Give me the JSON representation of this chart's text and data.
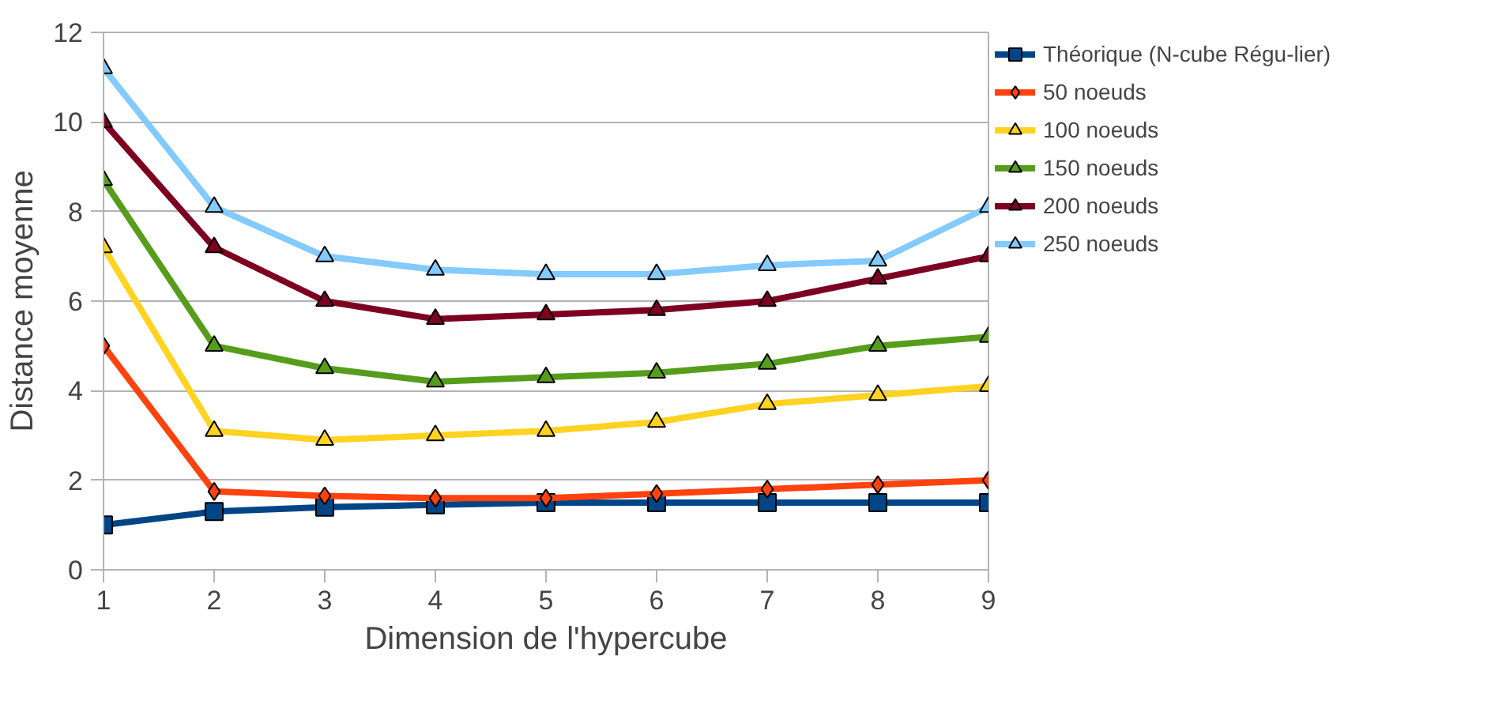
{
  "chart_data": {
    "type": "line",
    "xlabel": "Dimension de l'hypercube",
    "ylabel": "Distance moyenne",
    "x": [
      1,
      2,
      3,
      4,
      5,
      6,
      7,
      8,
      9
    ],
    "series": [
      {
        "name": "Théorique (N-cube Régu-lier)",
        "color": "#004586",
        "marker": "square",
        "values": [
          1.0,
          1.3,
          1.4,
          1.45,
          1.5,
          1.5,
          1.5,
          1.5,
          1.5
        ]
      },
      {
        "name": "50 noeuds",
        "color": "#ff420e",
        "marker": "diamond",
        "values": [
          5.0,
          1.75,
          1.65,
          1.6,
          1.6,
          1.7,
          1.8,
          1.9,
          2.0
        ]
      },
      {
        "name": "100 noeuds",
        "color": "#ffd320",
        "marker": "triangle",
        "values": [
          7.2,
          3.1,
          2.9,
          3.0,
          3.1,
          3.3,
          3.7,
          3.9,
          4.1
        ]
      },
      {
        "name": "150 noeuds",
        "color": "#579d1c",
        "marker": "triangle",
        "values": [
          8.7,
          5.0,
          4.5,
          4.2,
          4.3,
          4.4,
          4.6,
          5.0,
          5.2
        ]
      },
      {
        "name": "200 noeuds",
        "color": "#7e0021",
        "marker": "triangle",
        "values": [
          10.0,
          7.2,
          6.0,
          5.6,
          5.7,
          5.8,
          6.0,
          6.5,
          7.0
        ]
      },
      {
        "name": "250 noeuds",
        "color": "#83caff",
        "marker": "triangle",
        "values": [
          11.2,
          8.1,
          7.0,
          6.7,
          6.6,
          6.6,
          6.8,
          6.9,
          8.1
        ]
      }
    ],
    "xlim": [
      1,
      9
    ],
    "xticks": [
      1,
      2,
      3,
      4,
      5,
      6,
      7,
      8,
      9
    ],
    "ylim": [
      0,
      12
    ],
    "yticks": [
      0,
      2,
      4,
      6,
      8,
      10,
      12
    ],
    "grid": "y",
    "legend": "right"
  }
}
